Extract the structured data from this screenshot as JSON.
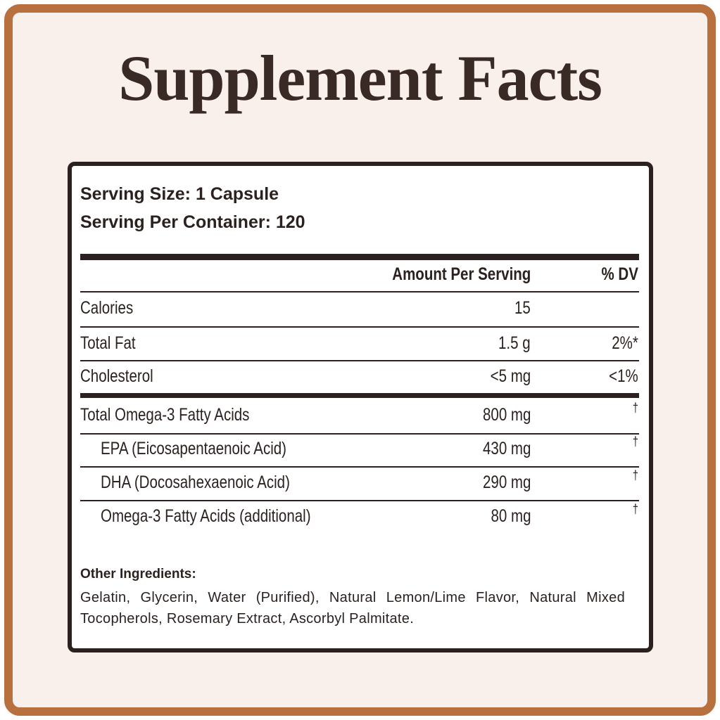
{
  "header": {
    "title": "Supplement Facts"
  },
  "serving": {
    "size": "Serving Size: 1 Capsule",
    "per_container": "Serving Per Container: 120"
  },
  "table": {
    "columns": [
      "Amount Per Serving",
      "% DV"
    ],
    "rows": [
      [
        "Calories",
        "15"
      ],
      [
        "Total Fat",
        "1.5 g",
        "2%*"
      ],
      [
        "Cholesterol",
        "<5 mg",
        "<1%"
      ],
      [
        "Total Omega-3 Fatty Acids",
        "800 mg",
        "†"
      ],
      [
        "EPA (Eicosapentaenoic Acid)",
        "430 mg",
        "†"
      ],
      [
        "DHA (Docosahexaenoic Acid)",
        "290 mg",
        "†"
      ],
      [
        "Omega-3 Fatty Acids (additional)",
        "80 mg",
        "†"
      ]
    ]
  },
  "ingredients": {
    "heading": "Other Ingredients:",
    "text": "Gelatin, Glycerin, Water (Purified), Natural Lemon/Lime Flavor, Natural Mixed Tocopherols, Rosemary Extract, Ascorbyl Palmitate."
  }
}
